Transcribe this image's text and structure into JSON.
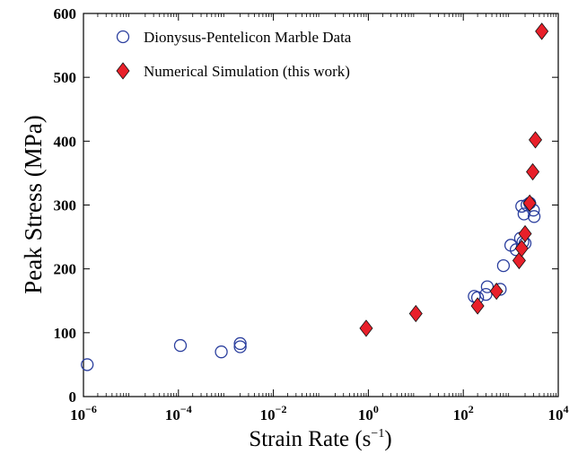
{
  "chart_data": {
    "type": "scatter",
    "xscale": "log",
    "xlim": [
      1e-06,
      10000.0
    ],
    "ylim": [
      0,
      600
    ],
    "xlabel": "Strain Rate (s",
    "xlabel_sup": "−1",
    "xlabel_end": ")",
    "ylabel": "Peak Stress (MPa)",
    "grid": false,
    "legend_position": "top-left",
    "x_ticks": [
      {
        "value": 1e-06,
        "base": "10",
        "exp": "−6"
      },
      {
        "value": 0.0001,
        "base": "10",
        "exp": "−4"
      },
      {
        "value": 0.01,
        "base": "10",
        "exp": "−2"
      },
      {
        "value": 1.0,
        "base": "10",
        "exp": "0"
      },
      {
        "value": 100.0,
        "base": "10",
        "exp": "2"
      },
      {
        "value": 10000.0,
        "base": "10",
        "exp": "4"
      }
    ],
    "y_ticks": [
      0,
      100,
      200,
      300,
      400,
      500,
      600
    ],
    "series": [
      {
        "name": "Dionysus-Pentelicon Marble Data",
        "marker": "circle",
        "color": "#2b3f9e",
        "points": [
          [
            1.2e-06,
            50
          ],
          [
            0.00011,
            80
          ],
          [
            0.0008,
            70
          ],
          [
            0.002,
            78
          ],
          [
            0.002,
            83
          ],
          [
            170,
            157
          ],
          [
            200,
            155
          ],
          [
            300,
            160
          ],
          [
            320,
            172
          ],
          [
            600,
            168
          ],
          [
            700,
            205
          ],
          [
            1000,
            237
          ],
          [
            1300,
            230
          ],
          [
            1600,
            248
          ],
          [
            1800,
            242
          ],
          [
            2000,
            240
          ],
          [
            1700,
            298
          ],
          [
            1900,
            286
          ],
          [
            2200,
            300
          ],
          [
            2500,
            303
          ],
          [
            3000,
            292
          ],
          [
            3100,
            282
          ]
        ]
      },
      {
        "name": "Numerical Simulation (this work)",
        "marker": "diamond",
        "color": "#e8202a",
        "points": [
          [
            0.9,
            107
          ],
          [
            10,
            130
          ],
          [
            200,
            142
          ],
          [
            500,
            165
          ],
          [
            1500,
            213
          ],
          [
            1700,
            232
          ],
          [
            2000,
            255
          ],
          [
            2500,
            303
          ],
          [
            2900,
            352
          ],
          [
            3300,
            402
          ],
          [
            4500,
            572
          ]
        ]
      }
    ]
  }
}
